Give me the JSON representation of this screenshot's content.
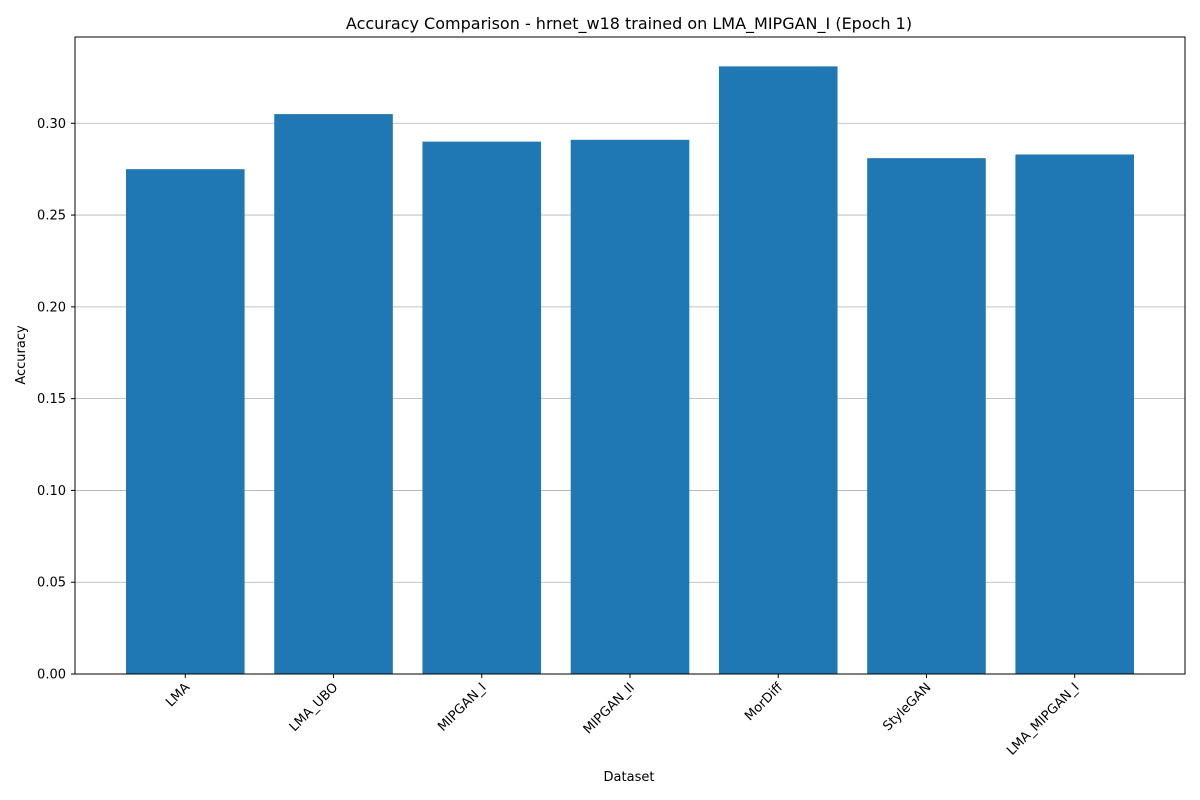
{
  "chart_data": {
    "type": "bar",
    "title": "Accuracy Comparison - hrnet_w18 trained on LMA_MIPGAN_I (Epoch 1)",
    "xlabel": "Dataset",
    "ylabel": "Accuracy",
    "categories": [
      "LMA",
      "LMA_UBO",
      "MIPGAN_I",
      "MIPGAN_II",
      "MorDiff",
      "StyleGAN",
      "LMA_MIPGAN_I"
    ],
    "values": [
      0.275,
      0.305,
      0.29,
      0.291,
      0.331,
      0.281,
      0.283
    ],
    "yticks": [
      "0.00",
      "0.05",
      "0.10",
      "0.15",
      "0.20",
      "0.25",
      "0.30"
    ],
    "ylim": [
      0,
      0.347
    ],
    "grid": "y-axis",
    "bar_color": "#1f77b4"
  }
}
